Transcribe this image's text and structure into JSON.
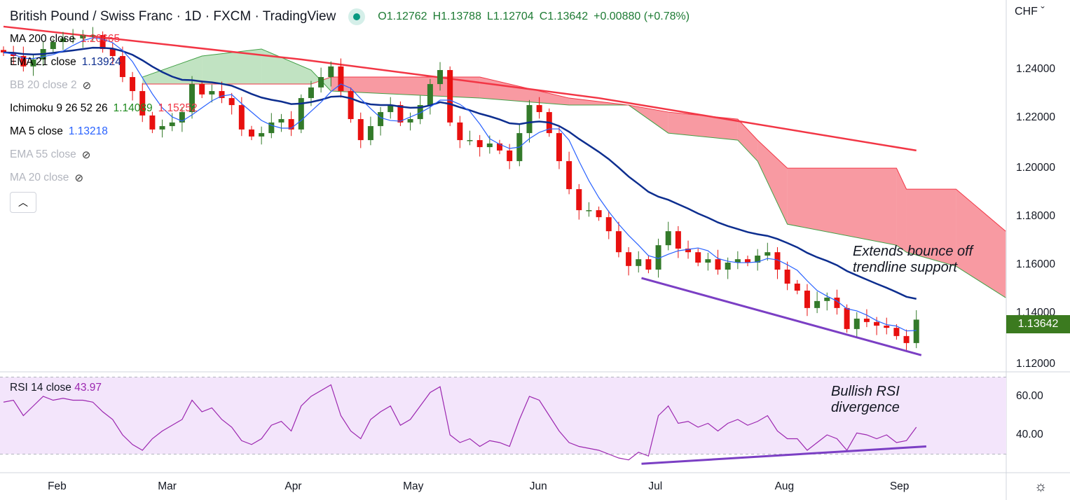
{
  "header": {
    "title": "British Pound / Swiss Franc · 1D · FXCM · TradingView",
    "open": "O1.12762",
    "high": "H1.13788",
    "low": "L1.12704",
    "close": "C1.13642",
    "change": "+0.00880 (+0.78%)"
  },
  "legend": [
    {
      "label": "MA 200 close",
      "value": "1.20665",
      "color": "#f23645"
    },
    {
      "label": "EMA 21 close",
      "value": "1.13924",
      "color": "#0d2e8f"
    },
    {
      "label": "BB 20 close 2",
      "hidden": true
    },
    {
      "label": "Ichimoku 9 26 52 26",
      "value": "1.14089",
      "value2": "1.15252"
    },
    {
      "label": "MA 5 close",
      "value": "1.13218",
      "color": "#2962ff"
    },
    {
      "label": "EMA 55 close",
      "hidden": true
    },
    {
      "label": "MA 20 close",
      "hidden": true
    }
  ],
  "collapse_icon": "chevron-up-icon",
  "price_axis": {
    "currency": "CHF",
    "ticks": [
      "1.24000",
      "1.22000",
      "1.20000",
      "1.18000",
      "1.16000",
      "1.14000",
      "1.12000"
    ],
    "last_price": "1.13642"
  },
  "rsi": {
    "label": "RSI 14 close",
    "value": "43.97",
    "ticks": [
      "60.00",
      "40.00"
    ]
  },
  "time_axis": {
    "labels": [
      {
        "text": "Feb",
        "bar": 5.4
      },
      {
        "text": "Mar",
        "bar": 16.5
      },
      {
        "text": "Apr",
        "bar": 29.2
      },
      {
        "text": "May",
        "bar": 41.3
      },
      {
        "text": "Jun",
        "bar": 53.9
      },
      {
        "text": "Jul",
        "bar": 65.7
      },
      {
        "text": "Aug",
        "bar": 78.7
      },
      {
        "text": "Sep",
        "bar": 90.3
      }
    ]
  },
  "annotations": {
    "price": [
      "Extends bounce off",
      "trendline support"
    ],
    "rsi": [
      "Bullish RSI",
      "divergence"
    ]
  },
  "chart_data": {
    "type": "candlestick",
    "symbol": "GBPCHF",
    "ylim": [
      1.115,
      1.26
    ],
    "rsi_ylim": [
      22,
      73
    ],
    "closes": [
      1.247,
      1.2455,
      1.2412,
      1.2441,
      1.2484,
      1.2513,
      1.2528,
      1.2528,
      1.2542,
      1.2542,
      1.2484,
      1.2455,
      1.2368,
      1.231,
      1.2209,
      1.2151,
      1.2165,
      1.218,
      1.2223,
      1.2339,
      1.2296,
      1.231,
      1.2281,
      1.2252,
      1.2151,
      1.2122,
      1.2136,
      1.218,
      1.2194,
      1.2151,
      1.2281,
      1.2325,
      1.2368,
      1.2412,
      1.231,
      1.2194,
      1.2107,
      1.2165,
      1.2223,
      1.2252,
      1.218,
      1.2194,
      1.2252,
      1.2339,
      1.2397,
      1.218,
      1.2107,
      1.2107,
      1.2078,
      1.2093,
      1.2064,
      1.202,
      1.2136,
      1.2252,
      1.2223,
      1.2136,
      1.202,
      1.1904,
      1.1817,
      1.1817,
      1.1788,
      1.173,
      1.1643,
      1.1586,
      1.1614,
      1.1571,
      1.1672,
      1.173,
      1.1658,
      1.1643,
      1.16,
      1.1614,
      1.1571,
      1.16,
      1.1614,
      1.16,
      1.1629,
      1.1643,
      1.1571,
      1.1513,
      1.1484,
      1.1412,
      1.1441,
      1.1455,
      1.1412,
      1.1325,
      1.1368,
      1.1354,
      1.1339,
      1.133,
      1.1296,
      1.1267,
      1.1364
    ],
    "ma200": {
      "bars": [
        0,
        30,
        60,
        92
      ],
      "values": [
        1.2577,
        1.2441,
        1.2281,
        1.2064
      ]
    },
    "cloud": {
      "bars": [
        14,
        20,
        26,
        31,
        33,
        48,
        57,
        63,
        67,
        74,
        76,
        79,
        90,
        91,
        96,
        101
      ],
      "span_a": [
        1.2368,
        1.2455,
        1.2484,
        1.2397,
        1.231,
        1.2281,
        1.2252,
        1.2252,
        1.2136,
        1.2107,
        1.202,
        1.1759,
        1.1672,
        1.1643,
        1.1585,
        1.1455
      ],
      "span_b": [
        1.2339,
        1.2339,
        1.2339,
        1.2339,
        1.2368,
        1.2368,
        1.2281,
        1.2252,
        1.2223,
        1.2194,
        1.2107,
        1.1991,
        1.1991,
        1.1904,
        1.1904,
        1.173
      ]
    },
    "rsi_values": [
      57,
      58,
      50,
      55,
      60,
      58,
      59,
      58,
      58,
      57,
      52,
      48,
      40,
      35,
      32,
      38,
      42,
      45,
      48,
      58,
      52,
      54,
      48,
      44,
      37,
      35,
      38,
      45,
      47,
      42,
      55,
      60,
      63,
      66,
      50,
      42,
      38,
      48,
      52,
      55,
      45,
      48,
      55,
      62,
      65,
      40,
      36,
      38,
      34,
      37,
      36,
      34,
      48,
      60,
      58,
      50,
      42,
      36,
      34,
      33,
      32,
      30,
      28,
      27,
      31,
      29,
      50,
      55,
      46,
      47,
      44,
      46,
      42,
      46,
      48,
      45,
      47,
      50,
      42,
      38,
      38,
      32,
      36,
      40,
      38,
      32,
      41,
      40,
      38,
      40,
      36,
      37,
      44
    ],
    "rsi_band": [
      30,
      70
    ],
    "price_trendline": {
      "bars": [
        64.3,
        92.5
      ],
      "values": [
        1.1536,
        1.1217
      ]
    },
    "rsi_trendline": {
      "bars": [
        64.3,
        93
      ],
      "values": [
        25,
        34
      ]
    },
    "colors": {
      "up": "#337a2a",
      "down": "#e8100f",
      "ema21": "#0d2e8f",
      "ma5": "#2962ff",
      "ma200": "#f23645",
      "trend": "#7b3fc4",
      "rsi": "#9c27b0"
    }
  }
}
